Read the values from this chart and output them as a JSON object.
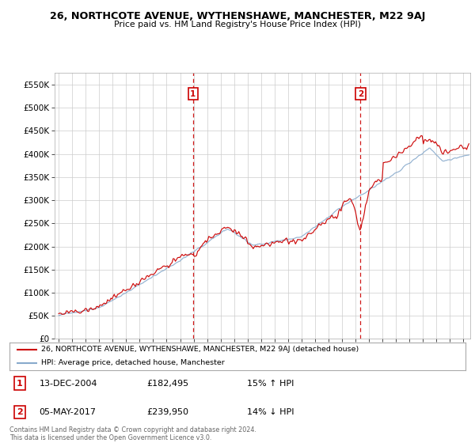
{
  "title": "26, NORTHCOTE AVENUE, WYTHENSHAWE, MANCHESTER, M22 9AJ",
  "subtitle": "Price paid vs. HM Land Registry's House Price Index (HPI)",
  "yticks": [
    0,
    50000,
    100000,
    150000,
    200000,
    250000,
    300000,
    350000,
    400000,
    450000,
    500000,
    550000
  ],
  "ytick_labels": [
    "£0",
    "£50K",
    "£100K",
    "£150K",
    "£200K",
    "£250K",
    "£300K",
    "£350K",
    "£400K",
    "£450K",
    "£500K",
    "£550K"
  ],
  "xlim_start": 1994.7,
  "xlim_end": 2025.5,
  "ylim_top": 575000,
  "xticks": [
    1995,
    1996,
    1997,
    1998,
    1999,
    2000,
    2001,
    2002,
    2003,
    2004,
    2005,
    2006,
    2007,
    2008,
    2009,
    2010,
    2011,
    2012,
    2013,
    2014,
    2015,
    2016,
    2017,
    2018,
    2019,
    2020,
    2021,
    2022,
    2023,
    2024,
    2025
  ],
  "legend_red": "26, NORTHCOTE AVENUE, WYTHENSHAWE, MANCHESTER, M22 9AJ (detached house)",
  "legend_blue": "HPI: Average price, detached house, Manchester",
  "marker1_label": "1",
  "marker1_date": "13-DEC-2004",
  "marker1_price": "£182,495",
  "marker1_hpi": "15% ↑ HPI",
  "marker1_x": 2004.96,
  "marker1_y": 182495,
  "marker2_label": "2",
  "marker2_date": "05-MAY-2017",
  "marker2_price": "£239,950",
  "marker2_hpi": "14% ↓ HPI",
  "marker2_x": 2017.37,
  "marker2_y": 239950,
  "red_color": "#cc0000",
  "blue_color": "#88aacc",
  "vline_color": "#cc0000",
  "grid_color": "#cccccc",
  "bg_color": "#ffffff",
  "footnote": "Contains HM Land Registry data © Crown copyright and database right 2024.\nThis data is licensed under the Open Government Licence v3.0."
}
